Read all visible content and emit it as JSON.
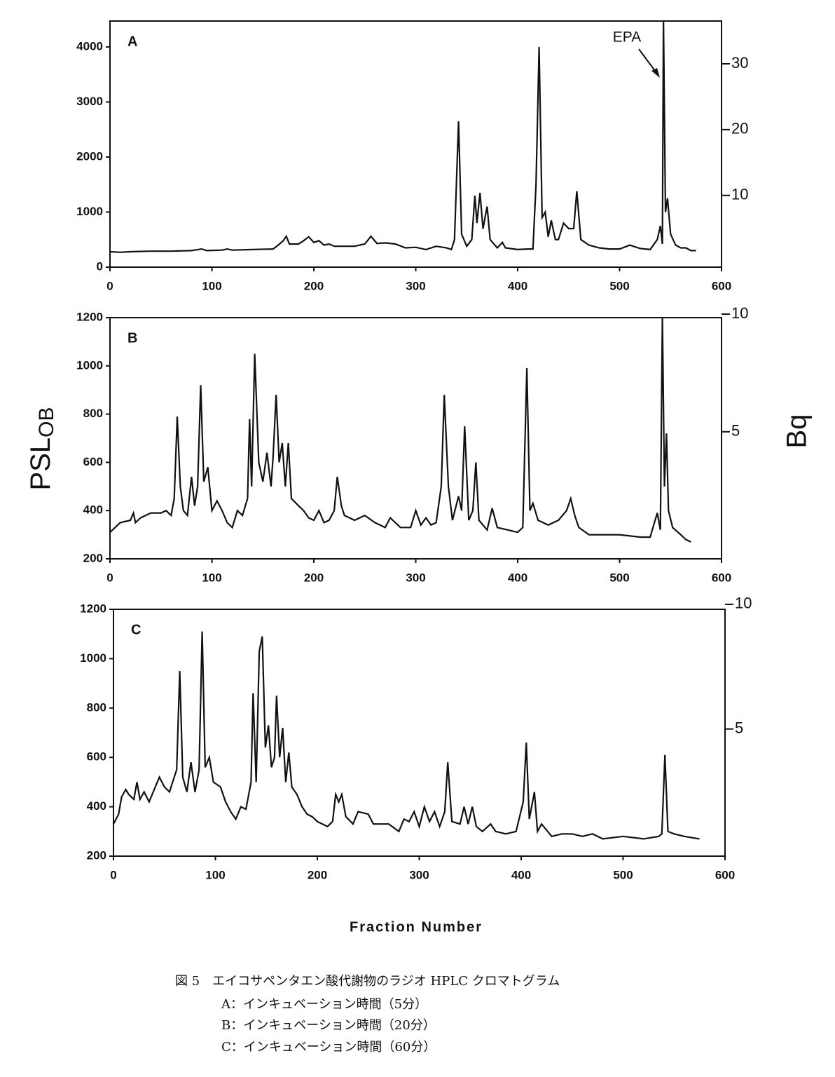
{
  "chart_data": [
    {
      "type": "line",
      "panel": "A",
      "annotation": "EPA",
      "color": "#111",
      "xlim": [
        0,
        600
      ],
      "xticks": [
        0,
        100,
        200,
        300,
        400,
        500,
        600
      ],
      "ylim": [
        0,
        4470
      ],
      "yticks": [
        0,
        1000,
        2000,
        3000,
        4000
      ],
      "y2lim": [
        -0.9,
        36.5
      ],
      "y2ticks": [
        10,
        20,
        30
      ],
      "x": [
        0,
        10,
        20,
        40,
        60,
        80,
        90,
        95,
        110,
        115,
        120,
        140,
        160,
        165,
        170,
        173,
        176,
        185,
        190,
        195,
        200,
        205,
        210,
        215,
        220,
        240,
        250,
        256,
        262,
        270,
        280,
        290,
        300,
        310,
        320,
        330,
        335,
        338,
        342,
        345,
        350,
        355,
        358,
        360,
        363,
        366,
        370,
        373,
        380,
        385,
        388,
        400,
        410,
        415,
        418,
        421,
        424,
        427,
        430,
        433,
        437,
        440,
        445,
        450,
        455,
        458,
        462,
        470,
        480,
        490,
        500,
        510,
        520,
        530,
        537,
        540,
        542,
        543,
        545,
        547,
        550,
        555,
        560,
        565,
        570,
        575
      ],
      "values": [
        280,
        270,
        280,
        290,
        290,
        300,
        330,
        300,
        310,
        330,
        310,
        320,
        330,
        400,
        480,
        560,
        420,
        420,
        480,
        550,
        450,
        480,
        400,
        420,
        380,
        380,
        420,
        560,
        430,
        440,
        420,
        350,
        360,
        320,
        380,
        350,
        320,
        500,
        2650,
        600,
        380,
        500,
        1300,
        800,
        1350,
        700,
        1100,
        500,
        350,
        450,
        350,
        320,
        330,
        330,
        1500,
        4000,
        900,
        1000,
        550,
        850,
        500,
        500,
        800,
        700,
        700,
        1380,
        500,
        400,
        350,
        330,
        330,
        400,
        340,
        320,
        500,
        750,
        420,
        4500,
        1000,
        1250,
        600,
        400,
        350,
        350,
        300,
        300
      ]
    },
    {
      "type": "line",
      "panel": "B",
      "color": "#111",
      "xlim": [
        0,
        600
      ],
      "xticks": [
        0,
        100,
        200,
        300,
        400,
        500,
        600
      ],
      "ylim": [
        200,
        1200
      ],
      "yticks": [
        200,
        400,
        600,
        800,
        1000,
        1200
      ],
      "y2lim": [
        -0.4,
        9.85
      ],
      "y2ticks": [
        5,
        10
      ],
      "x": [
        0,
        5,
        10,
        20,
        23,
        25,
        30,
        35,
        40,
        50,
        55,
        60,
        63,
        66,
        69,
        72,
        76,
        80,
        83,
        86,
        89,
        92,
        96,
        100,
        105,
        110,
        115,
        120,
        125,
        130,
        135,
        137,
        139,
        142,
        146,
        150,
        154,
        158,
        160,
        163,
        166,
        169,
        172,
        175,
        178,
        185,
        190,
        195,
        200,
        205,
        210,
        215,
        220,
        223,
        227,
        230,
        240,
        250,
        260,
        270,
        275,
        285,
        295,
        300,
        305,
        310,
        315,
        320,
        325,
        328,
        332,
        336,
        342,
        345,
        348,
        352,
        356,
        359,
        362,
        370,
        375,
        380,
        390,
        400,
        405,
        409,
        412,
        415,
        420,
        430,
        440,
        448,
        452,
        456,
        460,
        470,
        480,
        500,
        520,
        530,
        537,
        540,
        542,
        544,
        546,
        548,
        552,
        560,
        565,
        570
      ],
      "values": [
        310,
        330,
        350,
        360,
        390,
        350,
        370,
        380,
        390,
        390,
        400,
        380,
        450,
        790,
        500,
        400,
        380,
        540,
        420,
        500,
        920,
        520,
        580,
        400,
        440,
        400,
        350,
        330,
        400,
        380,
        450,
        780,
        500,
        1050,
        600,
        520,
        640,
        500,
        620,
        880,
        600,
        680,
        500,
        680,
        450,
        420,
        400,
        370,
        360,
        400,
        350,
        360,
        400,
        540,
        420,
        380,
        360,
        380,
        350,
        330,
        370,
        330,
        330,
        400,
        340,
        370,
        340,
        350,
        500,
        880,
        500,
        360,
        460,
        400,
        750,
        360,
        400,
        600,
        360,
        320,
        410,
        330,
        320,
        310,
        330,
        990,
        400,
        430,
        360,
        340,
        360,
        400,
        450,
        380,
        330,
        300,
        300,
        300,
        290,
        290,
        390,
        320,
        1200,
        500,
        720,
        400,
        330,
        300,
        280,
        270
      ]
    },
    {
      "type": "line",
      "panel": "C",
      "color": "#111",
      "xlim": [
        0,
        600
      ],
      "xticks": [
        0,
        100,
        200,
        300,
        400,
        500,
        600
      ],
      "ylim": [
        200,
        1200
      ],
      "yticks": [
        200,
        400,
        600,
        800,
        1000,
        1200
      ],
      "y2lim": [
        -0.1,
        9.8
      ],
      "y2ticks": [
        5,
        10
      ],
      "x": [
        0,
        5,
        8,
        12,
        15,
        20,
        23,
        26,
        30,
        35,
        40,
        45,
        50,
        55,
        58,
        62,
        65,
        68,
        72,
        76,
        80,
        84,
        87,
        90,
        94,
        98,
        105,
        110,
        115,
        120,
        125,
        130,
        135,
        137,
        140,
        143,
        146,
        149,
        152,
        155,
        158,
        160,
        163,
        166,
        169,
        172,
        175,
        180,
        185,
        190,
        195,
        200,
        210,
        215,
        218,
        221,
        224,
        228,
        235,
        240,
        250,
        255,
        270,
        280,
        285,
        290,
        295,
        300,
        305,
        310,
        315,
        320,
        325,
        328,
        332,
        340,
        344,
        348,
        352,
        356,
        362,
        370,
        375,
        385,
        395,
        402,
        405,
        408,
        413,
        416,
        420,
        430,
        440,
        450,
        460,
        470,
        480,
        500,
        520,
        535,
        538,
        541,
        544,
        550,
        560,
        575
      ],
      "values": [
        330,
        370,
        440,
        470,
        450,
        430,
        500,
        430,
        460,
        420,
        470,
        520,
        480,
        460,
        500,
        550,
        950,
        520,
        460,
        580,
        460,
        550,
        1110,
        560,
        600,
        500,
        480,
        420,
        380,
        350,
        400,
        390,
        500,
        860,
        500,
        1030,
        1090,
        640,
        730,
        560,
        600,
        850,
        600,
        720,
        500,
        620,
        480,
        450,
        400,
        370,
        360,
        340,
        320,
        340,
        450,
        420,
        450,
        360,
        330,
        380,
        370,
        330,
        330,
        300,
        350,
        340,
        380,
        320,
        400,
        340,
        380,
        320,
        380,
        580,
        340,
        330,
        400,
        330,
        400,
        320,
        300,
        330,
        300,
        290,
        300,
        420,
        660,
        350,
        460,
        300,
        330,
        280,
        290,
        290,
        280,
        290,
        270,
        280,
        270,
        280,
        290,
        610,
        300,
        290,
        280,
        270
      ]
    }
  ],
  "y_label": {
    "main": "PSL",
    "sub": "OB"
  },
  "y2_label": "Bq",
  "x_label": "Fraction Number",
  "caption": [
    "図 5　エイコサペンタエン酸代謝物のラジオ HPLC クロマトグラム",
    "A：インキュベーション時間（5分）",
    "B：インキュベーション時間（20分）",
    "C：インキュベーション時間（60分）"
  ]
}
